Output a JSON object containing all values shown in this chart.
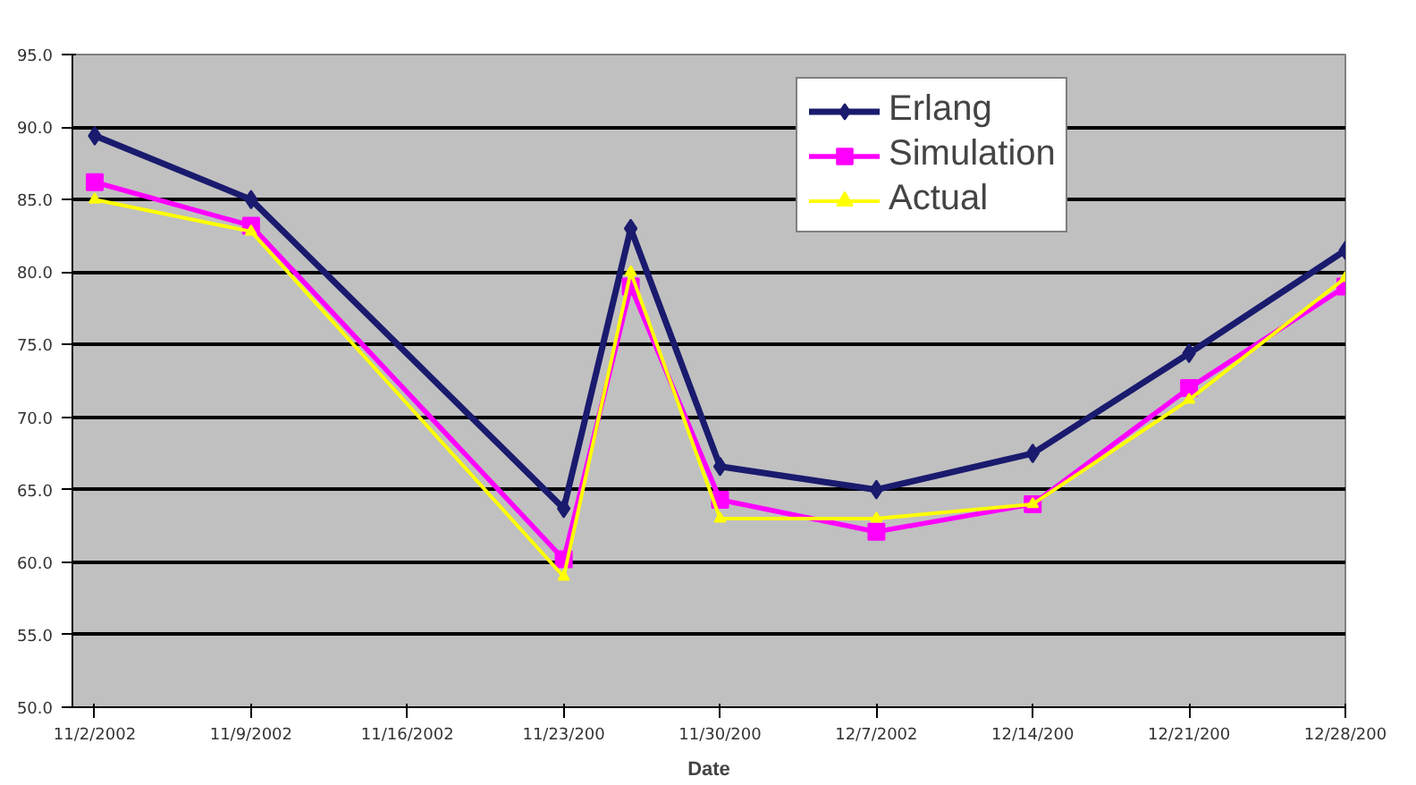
{
  "chart_data": {
    "type": "line",
    "xlabel": "Date",
    "x": [
      "2002-11-02",
      "2002-11-09",
      "2002-11-23",
      "2002-11-26",
      "2002-11-30",
      "2002-12-07",
      "2002-12-14",
      "2002-12-21",
      "2002-12-28"
    ],
    "series": [
      {
        "name": "Erlang",
        "color": "#1a1a6e",
        "marker": "diamond",
        "values": [
          89.4,
          85.0,
          63.7,
          83.0,
          66.6,
          65.0,
          67.5,
          74.4,
          81.5
        ]
      },
      {
        "name": "Simulation",
        "color": "#ff00ff",
        "marker": "square",
        "values": [
          86.2,
          83.2,
          60.2,
          79.0,
          64.3,
          62.1,
          64.0,
          72.0,
          79.0
        ]
      },
      {
        "name": "Actual",
        "color": "#ffff00",
        "marker": "triangle",
        "values": [
          85.0,
          82.8,
          59.0,
          80.0,
          63.0,
          63.0,
          64.0,
          71.2,
          79.6
        ]
      }
    ],
    "xlim": [
      "2002-11-01",
      "2002-12-28"
    ],
    "xticks": [
      {
        "value": "2002-11-02",
        "label": "11/2/2002"
      },
      {
        "value": "2002-11-09",
        "label": "11/9/2002"
      },
      {
        "value": "2002-11-16",
        "label": "11/16/2002"
      },
      {
        "value": "2002-11-23",
        "label": "11/23/200"
      },
      {
        "value": "2002-11-30",
        "label": "11/30/200"
      },
      {
        "value": "2002-12-07",
        "label": "12/7/2002"
      },
      {
        "value": "2002-12-14",
        "label": "12/14/200"
      },
      {
        "value": "2002-12-21",
        "label": "12/21/200"
      },
      {
        "value": "2002-12-28",
        "label": "12/28/200"
      }
    ],
    "ylim": [
      50,
      95
    ],
    "yticks": [
      {
        "value": 50,
        "label": "50.0"
      },
      {
        "value": 55,
        "label": "55.0"
      },
      {
        "value": 60,
        "label": "60.0"
      },
      {
        "value": 65,
        "label": "65.0"
      },
      {
        "value": 70,
        "label": "70.0"
      },
      {
        "value": 75,
        "label": "75.0"
      },
      {
        "value": 80,
        "label": "80.0"
      },
      {
        "value": 85,
        "label": "85.0"
      },
      {
        "value": 90,
        "label": "90.0"
      },
      {
        "value": 95,
        "label": "95.0"
      }
    ],
    "grid": "y",
    "legend": "top right",
    "line_style": "solid"
  }
}
